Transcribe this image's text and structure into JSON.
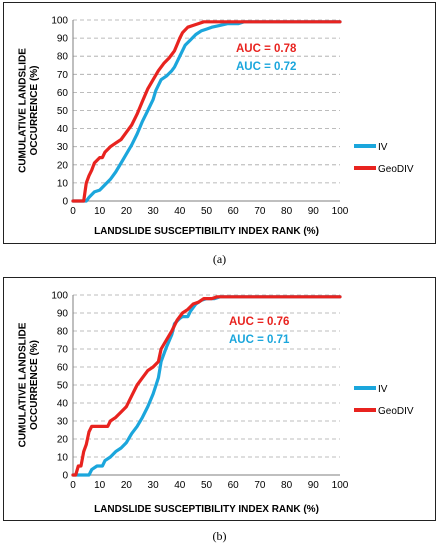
{
  "chart_data": [
    {
      "type": "line",
      "panel_label": "(a)",
      "xlabel": "LANDSLIDE SUSCEPTIBILITY INDEX RANK (%)",
      "ylabel": "CUMULATIVE LANDSLIDE OCCURRENCE (%)",
      "xlim": [
        0,
        100
      ],
      "ylim": [
        0,
        100
      ],
      "xticks": [
        0,
        10,
        20,
        30,
        40,
        50,
        60,
        70,
        80,
        90,
        100
      ],
      "yticks": [
        0,
        10,
        20,
        30,
        40,
        50,
        60,
        70,
        80,
        90,
        100
      ],
      "grid": "horizontal dashed",
      "legend_position": "right",
      "annotations": [
        {
          "text": "AUC = 0.78",
          "color": "#e8231f"
        },
        {
          "text": "AUC = 0.72",
          "color": "#1ba6dc"
        }
      ],
      "series": [
        {
          "name": "IV",
          "color": "#1ba6dc",
          "points": [
            [
              0,
              0
            ],
            [
              5,
              0
            ],
            [
              6,
              2
            ],
            [
              8,
              5
            ],
            [
              10,
              6
            ],
            [
              12,
              9
            ],
            [
              14,
              12
            ],
            [
              16,
              16
            ],
            [
              18,
              21
            ],
            [
              20,
              26
            ],
            [
              22,
              31
            ],
            [
              24,
              37
            ],
            [
              26,
              44
            ],
            [
              28,
              50
            ],
            [
              30,
              56
            ],
            [
              31,
              61
            ],
            [
              33,
              67
            ],
            [
              35,
              69
            ],
            [
              37,
              72
            ],
            [
              38,
              74
            ],
            [
              40,
              80
            ],
            [
              42,
              86
            ],
            [
              44,
              89
            ],
            [
              46,
              92
            ],
            [
              48,
              94
            ],
            [
              50,
              95
            ],
            [
              52,
              96
            ],
            [
              55,
              97
            ],
            [
              58,
              98
            ],
            [
              62,
              98
            ],
            [
              64,
              99
            ],
            [
              66,
              99
            ],
            [
              100,
              99
            ]
          ]
        },
        {
          "name": "GeoDIV",
          "color": "#e8231f",
          "points": [
            [
              0,
              0
            ],
            [
              4,
              0
            ],
            [
              5,
              10
            ],
            [
              6,
              14
            ],
            [
              7,
              17
            ],
            [
              8,
              21
            ],
            [
              10,
              24
            ],
            [
              11,
              24
            ],
            [
              12,
              27
            ],
            [
              14,
              30
            ],
            [
              16,
              32
            ],
            [
              18,
              34
            ],
            [
              20,
              38
            ],
            [
              22,
              42
            ],
            [
              24,
              48
            ],
            [
              26,
              55
            ],
            [
              28,
              62
            ],
            [
              30,
              67
            ],
            [
              32,
              72
            ],
            [
              34,
              76
            ],
            [
              36,
              79
            ],
            [
              38,
              83
            ],
            [
              40,
              90
            ],
            [
              41,
              93
            ],
            [
              43,
              96
            ],
            [
              45,
              97
            ],
            [
              47,
              98
            ],
            [
              49,
              99
            ],
            [
              52,
              99
            ],
            [
              100,
              99
            ]
          ]
        }
      ]
    },
    {
      "type": "line",
      "panel_label": "(b)",
      "xlabel": "LANDSLIDE SUSCEPTIBILITY INDEX RANK (%)",
      "ylabel": "CUMULATIVE LANDSLIDE OCCURRENCE (%)",
      "xlim": [
        0,
        100
      ],
      "ylim": [
        0,
        100
      ],
      "xticks": [
        0,
        10,
        20,
        30,
        40,
        50,
        60,
        70,
        80,
        90,
        100
      ],
      "yticks": [
        0,
        10,
        20,
        30,
        40,
        50,
        60,
        70,
        80,
        90,
        100
      ],
      "grid": "horizontal dashed",
      "legend_position": "right",
      "annotations": [
        {
          "text": "AUC = 0.76",
          "color": "#e8231f"
        },
        {
          "text": "AUC = 0.71",
          "color": "#1ba6dc"
        }
      ],
      "series": [
        {
          "name": "IV",
          "color": "#1ba6dc",
          "points": [
            [
              0,
              0
            ],
            [
              6,
              0
            ],
            [
              7,
              3
            ],
            [
              9,
              5
            ],
            [
              11,
              5
            ],
            [
              12,
              8
            ],
            [
              14,
              10
            ],
            [
              16,
              13
            ],
            [
              18,
              15
            ],
            [
              20,
              18
            ],
            [
              22,
              23
            ],
            [
              24,
              27
            ],
            [
              26,
              32
            ],
            [
              28,
              38
            ],
            [
              30,
              45
            ],
            [
              32,
              54
            ],
            [
              33,
              63
            ],
            [
              35,
              71
            ],
            [
              37,
              78
            ],
            [
              38,
              84
            ],
            [
              40,
              87
            ],
            [
              41,
              88
            ],
            [
              43,
              88
            ],
            [
              44,
              91
            ],
            [
              46,
              95
            ],
            [
              48,
              97
            ],
            [
              50,
              98
            ],
            [
              53,
              98
            ],
            [
              55,
              99
            ],
            [
              100,
              99
            ]
          ]
        },
        {
          "name": "GeoDIV",
          "color": "#e8231f",
          "points": [
            [
              0,
              0
            ],
            [
              1,
              0
            ],
            [
              2,
              5
            ],
            [
              3,
              5
            ],
            [
              4,
              13
            ],
            [
              5,
              17
            ],
            [
              6,
              24
            ],
            [
              7,
              27
            ],
            [
              13,
              27
            ],
            [
              14,
              30
            ],
            [
              16,
              32
            ],
            [
              18,
              35
            ],
            [
              20,
              38
            ],
            [
              22,
              44
            ],
            [
              24,
              50
            ],
            [
              26,
              54
            ],
            [
              28,
              58
            ],
            [
              30,
              60
            ],
            [
              32,
              63
            ],
            [
              33,
              70
            ],
            [
              35,
              75
            ],
            [
              37,
              80
            ],
            [
              39,
              86
            ],
            [
              41,
              90
            ],
            [
              43,
              92
            ],
            [
              45,
              95
            ],
            [
              47,
              96
            ],
            [
              49,
              98
            ],
            [
              52,
              98
            ],
            [
              54,
              99
            ],
            [
              100,
              99
            ]
          ]
        }
      ]
    }
  ]
}
